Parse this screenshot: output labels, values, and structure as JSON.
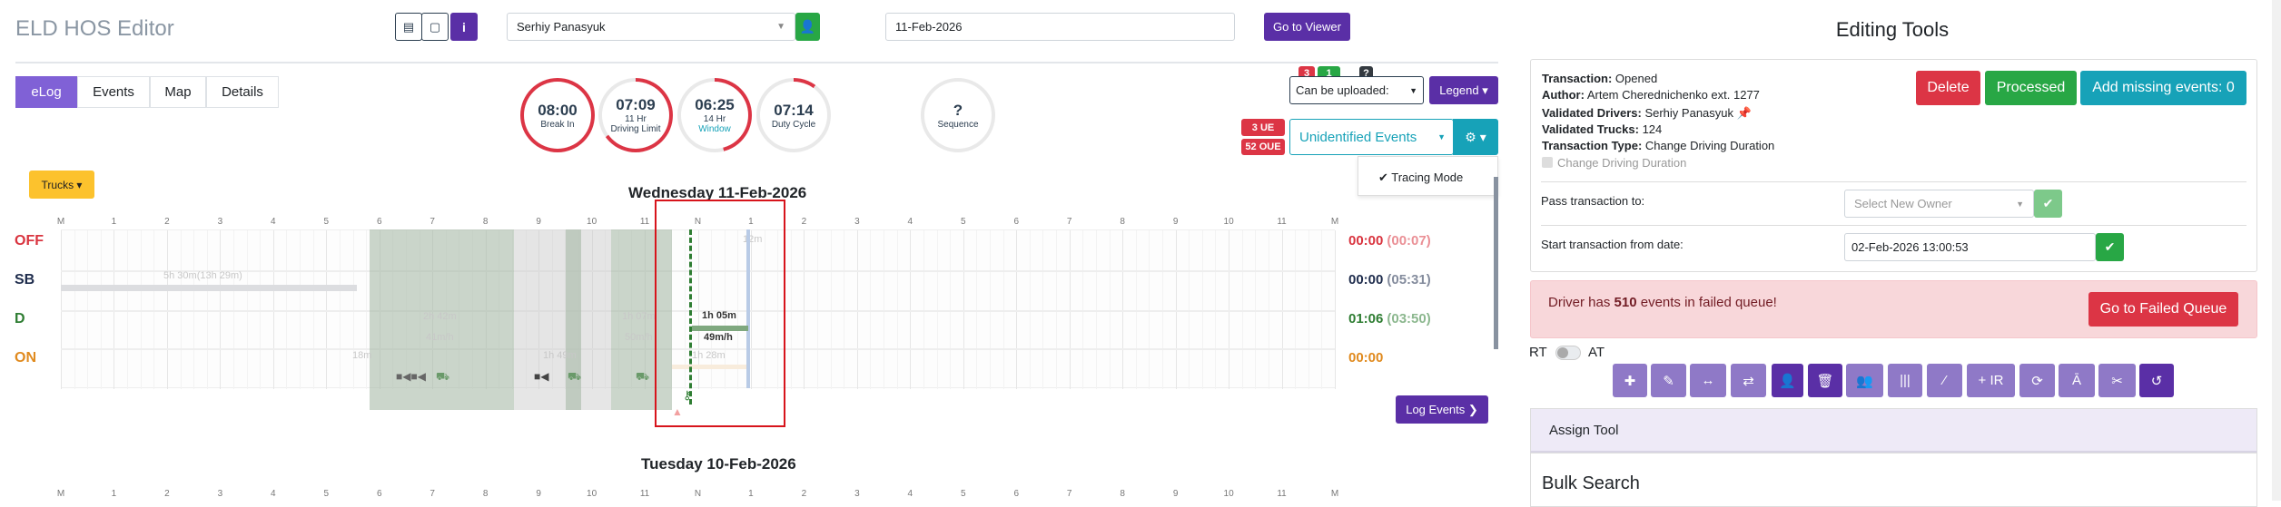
{
  "header": {
    "title": "ELD HOS Editor",
    "driver": "Serhiy Panasyuk",
    "date": "11-Feb-2026",
    "go_to_viewer": "Go to Viewer",
    "info_icon": "i"
  },
  "tabs": [
    {
      "label": "eLog",
      "active": true
    },
    {
      "label": "Events"
    },
    {
      "label": "Map"
    },
    {
      "label": "Details"
    }
  ],
  "clocks": [
    {
      "value": "08:00",
      "label1": "Break In",
      "label2": "",
      "progress": 1.0
    },
    {
      "value": "07:09",
      "label1": "11 Hr",
      "label2": "Driving Limit",
      "progress": 0.65
    },
    {
      "value": "06:25",
      "label1": "14 Hr",
      "label2": "Window",
      "progress": 0.46
    },
    {
      "value": "07:14",
      "label1": "Duty Cycle",
      "label2": "",
      "progress": 0.1
    },
    {
      "value": "?",
      "label1": "Sequence",
      "label2": "",
      "progress": 0
    }
  ],
  "status": {
    "badges": [
      "3",
      "1",
      "?"
    ],
    "upload_select": "Can be uploaded:",
    "legend": "Legend",
    "ue": "3 UE",
    "oue": "52 OUE",
    "unidentified": "Unidentified Events",
    "tracing": "✔ Tracing Mode"
  },
  "trucks_button": "Trucks",
  "day1": {
    "title": "Wednesday 11-Feb-2026",
    "rows": [
      {
        "label": "OFF",
        "color": "#d9343f",
        "total": "00:00",
        "total_sub": "(00:07)"
      },
      {
        "label": "SB",
        "color": "#1f2d4d",
        "total": "00:00",
        "total_sub": "(05:31)"
      },
      {
        "label": "D",
        "color": "#2e7d32",
        "total": "01:06",
        "total_sub": "(03:50)"
      },
      {
        "label": "ON",
        "color": "#e08a1e",
        "total": "00:00",
        "total_sub": ""
      }
    ],
    "labels": {
      "sb": "5h 30m(13h 29m)",
      "d1": "2h 42m",
      "s1": "41m/h",
      "d2": "1h 07m",
      "s2": "50m/h",
      "on1": "18m",
      "on2": "1h 49m",
      "on3": "1h 28m",
      "off1": "12m",
      "d3": "1h 05m",
      "s3": "49m/h"
    }
  },
  "hours": [
    "M",
    "1",
    "2",
    "3",
    "4",
    "5",
    "6",
    "7",
    "8",
    "9",
    "10",
    "11",
    "N",
    "1",
    "2",
    "3",
    "4",
    "5",
    "6",
    "7",
    "8",
    "9",
    "10",
    "11",
    "M"
  ],
  "log_events": "Log Events",
  "day2": {
    "title": "Tuesday 10-Feb-2026"
  },
  "tools": {
    "title": "Editing Tools",
    "transaction_k": "Transaction:",
    "transaction": "Opened",
    "author_k": "Author:",
    "author": "Artem Cherednichenko ext. 1277",
    "drivers_k": "Validated Drivers:",
    "drivers": "Serhiy Panasyuk",
    "trucks_k": "Validated Trucks:",
    "trucks": "124",
    "type_k": "Transaction Type:",
    "type": "Change Driving Duration",
    "checkbox": "Change Driving Duration",
    "delete": "Delete",
    "processed": "Processed",
    "add_missing": "Add missing events: 0",
    "pass_label": "Pass transaction to:",
    "owner_placeholder": "Select New Owner",
    "start_label": "Start transaction from date:",
    "start_value": "02-Feb-2026 13:00:53",
    "alert_pre": "Driver has ",
    "alert_num": "510",
    "alert_post": " events in failed queue!",
    "failed_btn": "Go to Failed Queue",
    "rt": "RT",
    "at": "AT",
    "toolbar": [
      "plus-icon",
      "pencil-icon",
      "resize-icon",
      "swap-icon",
      "user-icon",
      "trash-icon",
      "users-icon",
      "columns-icon",
      "magic-icon",
      "+ IR",
      "refresh-icon",
      "text-height-icon",
      "scissors-icon",
      "undo-icon"
    ],
    "assign": "Assign Tool",
    "bulk": "Bulk Search"
  },
  "colors": {
    "purple": "#5a2fa6",
    "light_purple": "#8f79c7",
    "green": "#28a745",
    "red": "#dc3545",
    "teal": "#17a2b8",
    "yellow": "#fcc22d"
  }
}
